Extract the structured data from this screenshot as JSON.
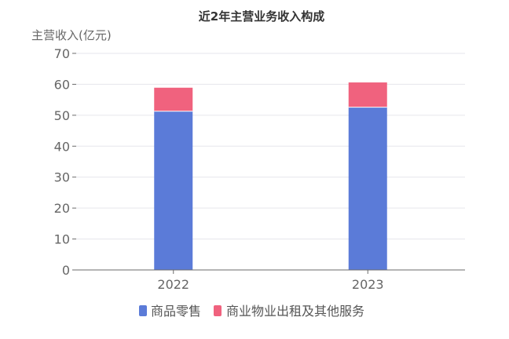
{
  "chart_data": {
    "type": "bar",
    "stacked": true,
    "title": "近2年主营业务收入构成",
    "ylabel": "主营收入(亿元)",
    "xlabel": "",
    "categories": [
      "2022",
      "2023"
    ],
    "ylim": [
      0,
      70
    ],
    "yticks": [
      0,
      10,
      20,
      30,
      40,
      50,
      60,
      70
    ],
    "grid": true,
    "legend_position": "bottom",
    "series": [
      {
        "name": "商品零售",
        "values": [
          51.3,
          52.6
        ],
        "color": "#5b7bd8"
      },
      {
        "name": "商业物业出租及其他服务",
        "values": [
          7.6,
          8.0
        ],
        "color": "#f0627e"
      }
    ]
  }
}
